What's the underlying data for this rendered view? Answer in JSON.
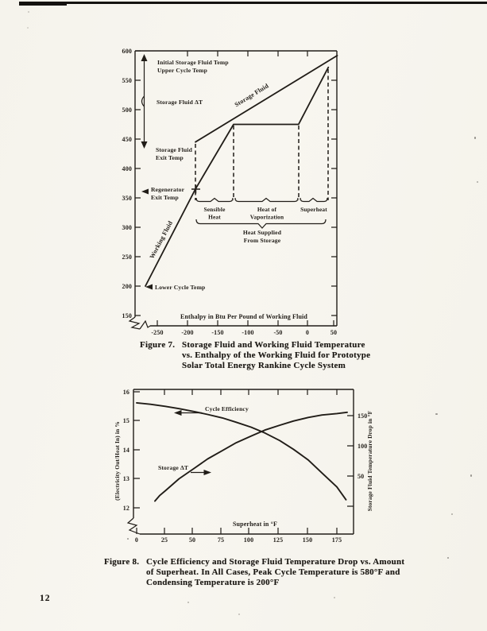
{
  "page": {
    "number": "12"
  },
  "colors": {
    "ink": "#211d18",
    "paper": "#f6f4ee"
  },
  "captions": {
    "fig7": {
      "prefix": "Figure 7.",
      "lines": [
        "Storage Fluid and Working Fluid Temperature",
        "vs. Enthalpy of the Working Fluid for Prototype",
        "Solar Total Energy Rankine Cycle System"
      ]
    },
    "fig8": {
      "prefix": "Figure 8.",
      "lines": [
        "Cycle Efficiency and Storage Fluid Temperature Drop vs. Amount",
        "of Superheat.  In All Cases, Peak Cycle Temperature is 580°F and",
        "Condensing Temperature is 200°F"
      ]
    }
  },
  "chart_data": [
    {
      "type": "line",
      "figure": "Figure 7",
      "x_axis": {
        "label": "Enthalpy in Btu Per Pound of Working Fluid",
        "tick_labels": [
          "-250",
          "-200",
          "-150",
          "-100",
          "-50",
          "0",
          "50"
        ],
        "range": [
          -290,
          55
        ],
        "broken_axis": true
      },
      "y_axis": {
        "tick_labels": [
          "600",
          "550",
          "500",
          "450",
          "400",
          "350",
          "300",
          "250",
          "200",
          "150"
        ],
        "range": [
          150,
          600
        ],
        "broken_axis": true
      },
      "series": [
        {
          "name": "Working Fluid",
          "points": [
            [
              -270,
              200
            ],
            [
              -186,
              365
            ],
            [
              -122,
              475
            ],
            [
              -13,
              475
            ],
            [
              37,
              572
            ]
          ]
        },
        {
          "name": "Storage Fluid",
          "points": [
            [
              -186,
              445
            ],
            [
              52,
              592
            ]
          ]
        }
      ],
      "key_values": {
        "initial_storage_fluid_temp": 590,
        "storage_fluid_exit_temp": 445,
        "regenerator_exit_temp": 365,
        "lower_cycle_temp": 200,
        "boiling_temperature": 475,
        "phase_boundary_enthalpies": [
          -186,
          -122,
          -13,
          37
        ]
      },
      "annotations": {
        "initial_temp_line1": "Initial Storage Fluid Temp",
        "initial_temp_line2": "Upper Cycle Temp",
        "storage_dt": "Storage Fluid ΔT",
        "exit_temp_line1": "Storage Fluid",
        "exit_temp_line2": "Exit Temp",
        "regen_line1": "Regenerator",
        "regen_line2": "Exit Temp",
        "lower_cycle": "Lower Cycle Temp",
        "sensible_line1": "Sensible",
        "sensible_line2": "Heat",
        "vapor_line1": "Heat of",
        "vapor_line2": "Vaporization",
        "superheat": "Superheat",
        "supplied_line1": "Heat Supplied",
        "supplied_line2": "From Storage",
        "working_fluid_label": "Working Fluid",
        "storage_fluid_label": "Storage Fluid"
      }
    },
    {
      "type": "line",
      "figure": "Figure 8",
      "x_axis": {
        "label": "Superheat in °F",
        "tick_labels": [
          "0",
          "25",
          "50",
          "75",
          "100",
          "125",
          "150",
          "175"
        ],
        "range": [
          0,
          190
        ],
        "broken_axis": true
      },
      "y_axis_left": {
        "label": "(Electricity Out/Heat In) in %",
        "tick_labels": [
          "16",
          "15",
          "14",
          "13",
          "12"
        ],
        "range": [
          12,
          16
        ],
        "broken_axis": true
      },
      "y_axis_right": {
        "label": "Storage Fluid Temperature Drop in °F",
        "tick_labels": [
          "150",
          "100",
          "50"
        ],
        "range": [
          0,
          165
        ]
      },
      "series": [
        {
          "name": "Cycle Efficiency",
          "axis": "left",
          "points": [
            [
              0,
              15.62
            ],
            [
              12,
              15.57
            ],
            [
              25,
              15.5
            ],
            [
              37,
              15.42
            ],
            [
              50,
              15.32
            ],
            [
              62,
              15.22
            ],
            [
              75,
              15.1
            ],
            [
              87,
              14.95
            ],
            [
              100,
              14.78
            ],
            [
              112,
              14.58
            ],
            [
              125,
              14.32
            ],
            [
              137,
              14.02
            ],
            [
              150,
              13.65
            ],
            [
              162,
              13.2
            ],
            [
              175,
              12.72
            ],
            [
              183,
              12.28
            ]
          ]
        },
        {
          "name": "Storage ΔT",
          "axis": "right",
          "points": [
            [
              16,
              8
            ],
            [
              20,
              17
            ],
            [
              25,
              25
            ],
            [
              37,
              45
            ],
            [
              50,
              62
            ],
            [
              62,
              78
            ],
            [
              75,
              92
            ],
            [
              87,
              105
            ],
            [
              100,
              116
            ],
            [
              112,
              126
            ],
            [
              125,
              134
            ],
            [
              137,
              141
            ],
            [
              150,
              147
            ],
            [
              162,
              151
            ],
            [
              175,
              153.5
            ],
            [
              184,
              155.5
            ]
          ]
        }
      ],
      "annotations": {
        "efficiency_label": "Cycle Efficiency",
        "storage_dt_label": "Storage ΔT"
      }
    }
  ]
}
